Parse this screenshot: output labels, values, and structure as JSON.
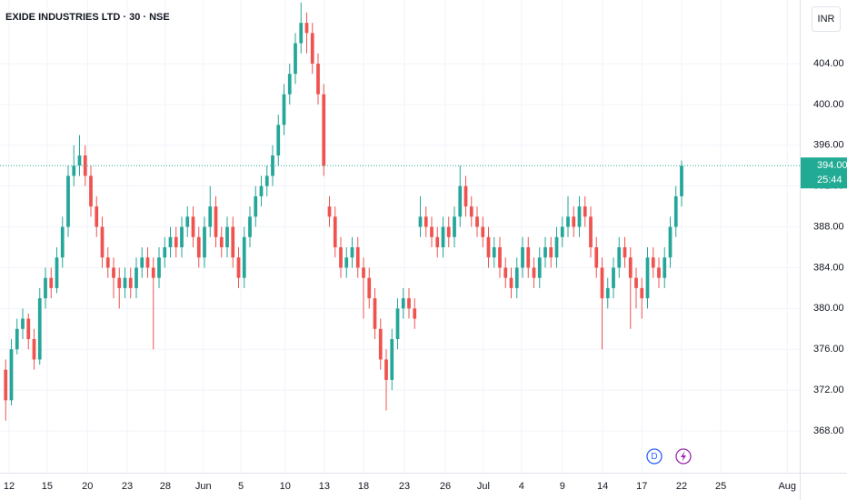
{
  "chart_data": {
    "type": "candlestick",
    "title": "EXIDE INDUSTRIES LTD · 30 · NSE",
    "currency": "INR",
    "up_color": "#26a69a",
    "down_color": "#ef5350",
    "grid": true,
    "ylim": [
      363.9,
      410.24
    ],
    "yticks": [
      {
        "value": 368,
        "label": "368.00"
      },
      {
        "value": 372,
        "label": "372.00"
      },
      {
        "value": 376,
        "label": "376.00"
      },
      {
        "value": 380,
        "label": "380.00"
      },
      {
        "value": 384,
        "label": "384.00"
      },
      {
        "value": 388,
        "label": "388.00"
      },
      {
        "value": 392,
        "label": "392.00"
      },
      {
        "value": 396,
        "label": "396.00"
      },
      {
        "value": 400,
        "label": "400.00"
      },
      {
        "value": 404,
        "label": "404.00"
      }
    ],
    "xlim": [
      -1,
      139.8
    ],
    "xticks": [
      {
        "value": 0.6,
        "label": "12"
      },
      {
        "value": 7.3,
        "label": "15"
      },
      {
        "value": 14.4,
        "label": "20"
      },
      {
        "value": 21.4,
        "label": "23"
      },
      {
        "value": 28.1,
        "label": "28"
      },
      {
        "value": 34.8,
        "label": "Jun"
      },
      {
        "value": 41.4,
        "label": "5"
      },
      {
        "value": 49.2,
        "label": "10"
      },
      {
        "value": 56.1,
        "label": "13"
      },
      {
        "value": 63,
        "label": "18"
      },
      {
        "value": 70.2,
        "label": "23"
      },
      {
        "value": 77.4,
        "label": "26"
      },
      {
        "value": 84.1,
        "label": "Jul"
      },
      {
        "value": 90.8,
        "label": "4"
      },
      {
        "value": 98,
        "label": "9"
      },
      {
        "value": 105.1,
        "label": "14"
      },
      {
        "value": 112,
        "label": "17"
      },
      {
        "value": 119,
        "label": "22"
      },
      {
        "value": 125.9,
        "label": "25"
      },
      {
        "value": 137.6,
        "label": "Aug"
      }
    ],
    "price_line": {
      "value": 394,
      "label": "394.00"
    },
    "countdown": "25:44",
    "events": [
      "D"
    ],
    "ohlc": [
      [
        374,
        375,
        369,
        371
      ],
      [
        371,
        377,
        370.5,
        376
      ],
      [
        376,
        379,
        375.5,
        378
      ],
      [
        378,
        380,
        377,
        379
      ],
      [
        379,
        379.5,
        376,
        377
      ],
      [
        377,
        378,
        374,
        375
      ],
      [
        375,
        382,
        374.5,
        381
      ],
      [
        381,
        384,
        380,
        383
      ],
      [
        383,
        384,
        381,
        382
      ],
      [
        382,
        386,
        381.5,
        385
      ],
      [
        385,
        389,
        384,
        388
      ],
      [
        388,
        394,
        387,
        393
      ],
      [
        393,
        396,
        392,
        394
      ],
      [
        394,
        397,
        393,
        395
      ],
      [
        395,
        396,
        392,
        393
      ],
      [
        393,
        394,
        389,
        390
      ],
      [
        390,
        391,
        387,
        388
      ],
      [
        388,
        389,
        384,
        385
      ],
      [
        385,
        386,
        383,
        384
      ],
      [
        384,
        385,
        381,
        383
      ],
      [
        383,
        384,
        380,
        382
      ],
      [
        382,
        384,
        381,
        383
      ],
      [
        383,
        384,
        381,
        382
      ],
      [
        382,
        385,
        381,
        384
      ],
      [
        384,
        386,
        383,
        385
      ],
      [
        385,
        386,
        383,
        384
      ],
      [
        384,
        385,
        376,
        383
      ],
      [
        383,
        386,
        382,
        385
      ],
      [
        385,
        387,
        384,
        386
      ],
      [
        386,
        388,
        385,
        387
      ],
      [
        387,
        388,
        385,
        386
      ],
      [
        386,
        389,
        385,
        388
      ],
      [
        388,
        390,
        387,
        389
      ],
      [
        389,
        390,
        386,
        387
      ],
      [
        387,
        388,
        384,
        385
      ],
      [
        385,
        389,
        384,
        388
      ],
      [
        388,
        392,
        387,
        390
      ],
      [
        390,
        391,
        386,
        387
      ],
      [
        387,
        388,
        385,
        386
      ],
      [
        386,
        389,
        385,
        388
      ],
      [
        388,
        389,
        384,
        385
      ],
      [
        385,
        386,
        382,
        383
      ],
      [
        383,
        388,
        382,
        387
      ],
      [
        387,
        390,
        386,
        389
      ],
      [
        389,
        392,
        388,
        391
      ],
      [
        391,
        393,
        390,
        392
      ],
      [
        392,
        394,
        391,
        393
      ],
      [
        393,
        396,
        392,
        395
      ],
      [
        395,
        399,
        394,
        398
      ],
      [
        398,
        402,
        397,
        401
      ],
      [
        401,
        404,
        400,
        403
      ],
      [
        403,
        407,
        402,
        406
      ],
      [
        406,
        410,
        405,
        408
      ],
      [
        408,
        409,
        405,
        407
      ],
      [
        407,
        408,
        403,
        404
      ],
      [
        404,
        405,
        400,
        401
      ],
      [
        401,
        402,
        393,
        394
      ],
      [
        390,
        391,
        388,
        389
      ],
      [
        389,
        390,
        385,
        386
      ],
      [
        386,
        387,
        383,
        384
      ],
      [
        384,
        386,
        383,
        385
      ],
      [
        385,
        387,
        384,
        386
      ],
      [
        386,
        387,
        383,
        384
      ],
      [
        384,
        385,
        379,
        383
      ],
      [
        383,
        384,
        380,
        381
      ],
      [
        381,
        382,
        377,
        378
      ],
      [
        378,
        379,
        374,
        375
      ],
      [
        375,
        376,
        370,
        373
      ],
      [
        373,
        378,
        372,
        377
      ],
      [
        377,
        381,
        376,
        380
      ],
      [
        380,
        382,
        379,
        381
      ],
      [
        381,
        382,
        379,
        380
      ],
      [
        380,
        381,
        378,
        379
      ],
      [
        388,
        391,
        387,
        389
      ],
      [
        389,
        390,
        387,
        388
      ],
      [
        388,
        389,
        386,
        387
      ],
      [
        387,
        388,
        385,
        386
      ],
      [
        386,
        389,
        385,
        388
      ],
      [
        388,
        389,
        386,
        387
      ],
      [
        387,
        390,
        386,
        389
      ],
      [
        389,
        394,
        388,
        392
      ],
      [
        392,
        393,
        389,
        390
      ],
      [
        390,
        391,
        388,
        389
      ],
      [
        389,
        390,
        387,
        388
      ],
      [
        388,
        389,
        386,
        387
      ],
      [
        387,
        388,
        384,
        385
      ],
      [
        385,
        387,
        384,
        386
      ],
      [
        386,
        387,
        383,
        384
      ],
      [
        384,
        385,
        382,
        383
      ],
      [
        383,
        384,
        381,
        382
      ],
      [
        382,
        385,
        381,
        384
      ],
      [
        384,
        387,
        383,
        386
      ],
      [
        386,
        387,
        383,
        384
      ],
      [
        384,
        385,
        382,
        383
      ],
      [
        383,
        386,
        382,
        385
      ],
      [
        385,
        387,
        384,
        386
      ],
      [
        386,
        387,
        384,
        385
      ],
      [
        385,
        388,
        384,
        387
      ],
      [
        387,
        389,
        386,
        388
      ],
      [
        388,
        391,
        387,
        389
      ],
      [
        389,
        390,
        387,
        388
      ],
      [
        388,
        391,
        387,
        390
      ],
      [
        390,
        391,
        388,
        389
      ],
      [
        389,
        390,
        385,
        386
      ],
      [
        386,
        387,
        383,
        384
      ],
      [
        384,
        385,
        376,
        381
      ],
      [
        381,
        383,
        380,
        382
      ],
      [
        382,
        385,
        381,
        384
      ],
      [
        384,
        387,
        383,
        386
      ],
      [
        386,
        387,
        384,
        385
      ],
      [
        385,
        386,
        378,
        383
      ],
      [
        383,
        384,
        380,
        382
      ],
      [
        382,
        383,
        379,
        381
      ],
      [
        381,
        386,
        380,
        385
      ],
      [
        385,
        386,
        383,
        384
      ],
      [
        384,
        385,
        382,
        383
      ],
      [
        383,
        386,
        382,
        385
      ],
      [
        385,
        389,
        384,
        388
      ],
      [
        388,
        392,
        387,
        391
      ],
      [
        391,
        394.5,
        390,
        394
      ]
    ]
  }
}
